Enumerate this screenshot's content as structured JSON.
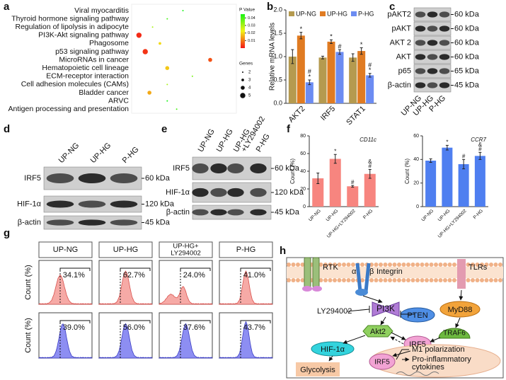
{
  "panel_labels": [
    "a",
    "b",
    "c",
    "d",
    "e",
    "f",
    "g",
    "h"
  ],
  "chart_data": [
    {
      "type": "dot",
      "categories": [
        "Viral myocarditis",
        "Thyroid hormone signaling pathway",
        "Regulation of lipolysis in adipocyte",
        "PI3K-Akt signaling pathway",
        "Phagosome",
        "p53 signaling pathway",
        "MicroRNAs in cancer",
        "Hematopoietic cell lineage",
        "ECM-receptor interaction",
        "Cell adhesion molecules (CAMs)",
        "Bladder cancer",
        "ARVC",
        "Antigen processing and presentation"
      ],
      "label_colors": [
        "#111111",
        "#111111",
        "#111111",
        "#e3161c",
        "#111111",
        "#111111",
        "#111111",
        "#111111",
        "#111111",
        "#111111",
        "#111111",
        "#111111",
        "#111111"
      ],
      "x": [
        0.49,
        0.34,
        0.2,
        0.07,
        0.27,
        0.13,
        0.75,
        0.34,
        0.58,
        0.34,
        0.17,
        0.34,
        0.43
      ],
      "xlim": [
        0,
        1
      ],
      "genes": [
        2,
        2,
        2,
        5,
        3,
        5,
        4,
        4,
        2,
        2,
        4,
        2,
        2
      ],
      "pvalues": [
        0.045,
        0.04,
        0.03,
        0.002,
        0.02,
        0.003,
        0.006,
        0.018,
        0.035,
        0.03,
        0.015,
        0.045,
        0.04
      ],
      "color_title": "P Value",
      "clim": [
        0,
        0.045
      ],
      "color_ticks": [
        0.04,
        0.03,
        0.02,
        0.01
      ],
      "size_title": "Genes",
      "size_ticks": [
        2,
        3,
        4,
        5
      ]
    },
    {
      "type": "bar",
      "ylabel": "Relative mRNA levels",
      "categories": [
        "AKT2",
        "IRF5",
        "STAT1"
      ],
      "series": [
        {
          "name": "UP-NG",
          "color": "#b59a4f",
          "values": [
            1.0,
            0.98,
            0.98
          ],
          "errors": [
            0.15,
            0.03,
            0.08
          ],
          "annotations": [
            null,
            null,
            null
          ]
        },
        {
          "name": "UP-HG",
          "color": "#e07b22",
          "values": [
            1.45,
            1.32,
            1.12
          ],
          "errors": [
            0.07,
            0.04,
            0.07
          ],
          "annotations": [
            [
              "*"
            ],
            [
              "*"
            ],
            [
              "*"
            ]
          ]
        },
        {
          "name": "P-HG",
          "color": "#6c8cf2",
          "values": [
            0.45,
            1.1,
            0.6
          ],
          "errors": [
            0.05,
            0.05,
            0.04
          ],
          "annotations": [
            [
              "#",
              "*"
            ],
            [
              "#"
            ],
            [
              "#",
              "*"
            ]
          ]
        }
      ],
      "ylim": [
        0,
        2
      ],
      "yticks": [
        {
          "value": 0,
          "label": "0.0"
        },
        0.5,
        {
          "value": 1,
          "label": "1.0"
        },
        1.5,
        {
          "value": 2,
          "label": "2.0"
        }
      ],
      "legend": "top"
    },
    {
      "type": "bar",
      "title": "CD11c",
      "ylabel": "Count (%)",
      "categories": [
        "UP-NG",
        "UP-HG",
        "UP-HG+LY294002",
        "P-HG"
      ],
      "values": [
        32,
        54,
        23,
        37
      ],
      "errors": [
        6,
        5,
        1,
        5
      ],
      "annotations": [
        null,
        [
          "*"
        ],
        [
          "#"
        ],
        [
          "&",
          "#"
        ]
      ],
      "color": "#f7857f",
      "ylim": [
        0,
        80
      ],
      "yticks": [
        0,
        20,
        40,
        60,
        80
      ]
    },
    {
      "type": "bar",
      "title": "CCR7",
      "ylabel": "Count (%)",
      "categories": [
        "UP-NG",
        "UP-HG",
        "UP-HG+LY294002",
        "P-HG"
      ],
      "values": [
        39,
        50,
        36,
        43
      ],
      "errors": [
        1.5,
        2,
        4,
        3
      ],
      "annotations": [
        null,
        [
          "*"
        ],
        [
          "#"
        ],
        [
          "&",
          "#"
        ]
      ],
      "color": "#4f7ff0",
      "ylim": [
        0,
        60
      ],
      "yticks": [
        0,
        20,
        40,
        60
      ]
    }
  ],
  "blot_c": {
    "lanes": [
      [
        "UP-NG"
      ],
      [
        "UP-HG"
      ],
      [
        "P-HG"
      ]
    ],
    "rows": [
      {
        "label": "pAKT2",
        "size": "60 kDa"
      },
      {
        "label": "pAKT",
        "size": "60 kDa"
      },
      {
        "label": "AKT 2",
        "size": "60 kDa"
      },
      {
        "label": "AKT",
        "size": "60 kDa"
      },
      {
        "label": "p65",
        "size": "65 kDa"
      },
      {
        "label": "β-actin",
        "size": "45 kDa"
      }
    ]
  },
  "blot_d": {
    "lanes": [
      [
        "UP-NG"
      ],
      [
        "UP-HG"
      ],
      [
        "P-HG"
      ]
    ],
    "rows": [
      {
        "label": "IRF5",
        "size": "60 kDa"
      },
      {
        "label": "HIF-1α",
        "size": "120 kDa"
      },
      {
        "label": "β-actin",
        "size": "45 kDa"
      }
    ]
  },
  "blot_e": {
    "lanes": [
      [
        "UP-NG"
      ],
      [
        "UP-HG"
      ],
      [
        "UP-HG",
        "+LY294002"
      ],
      [
        "P-HG"
      ]
    ],
    "rows": [
      {
        "label": "IRF5",
        "size": "60 kDa"
      },
      {
        "label": "HIF-1α",
        "size": "120 kDa"
      },
      {
        "label": "β-actin",
        "size": "45 kDa"
      }
    ]
  },
  "flow": {
    "ylabel": "Count (%)",
    "groups": [
      {
        "name": [
          "UP-NG"
        ],
        "top": "34.1%",
        "bottom": "39.0%"
      },
      {
        "name": [
          "UP-HG"
        ],
        "top": "62.7%",
        "bottom": "56.0%"
      },
      {
        "name": [
          "UP-HG+",
          "LY294002"
        ],
        "top": "24.0%",
        "bottom": "37.6%"
      },
      {
        "name": [
          "P-HG"
        ],
        "top": "41.0%",
        "bottom": "43.7%"
      }
    ]
  },
  "diagram": {
    "rtk": "RTK",
    "alpha": "α",
    "beta": "β",
    "integrin": "Integrin",
    "tlrs": "TLRs",
    "ly294002": "LY294002",
    "pi3k": "PI3K",
    "pten": "PTEN",
    "myd88": "MyD88",
    "akt2": "Akt2",
    "traf6": "TRAF6",
    "hif1a": "HIF-1α",
    "irf5": "IRF5",
    "glycolysis": "Glycolysis",
    "nuclear_irf5": "IRF5",
    "m1": "M1 polarization",
    "cytokines": [
      "Pro-inflammatory",
      "cytokines"
    ]
  }
}
